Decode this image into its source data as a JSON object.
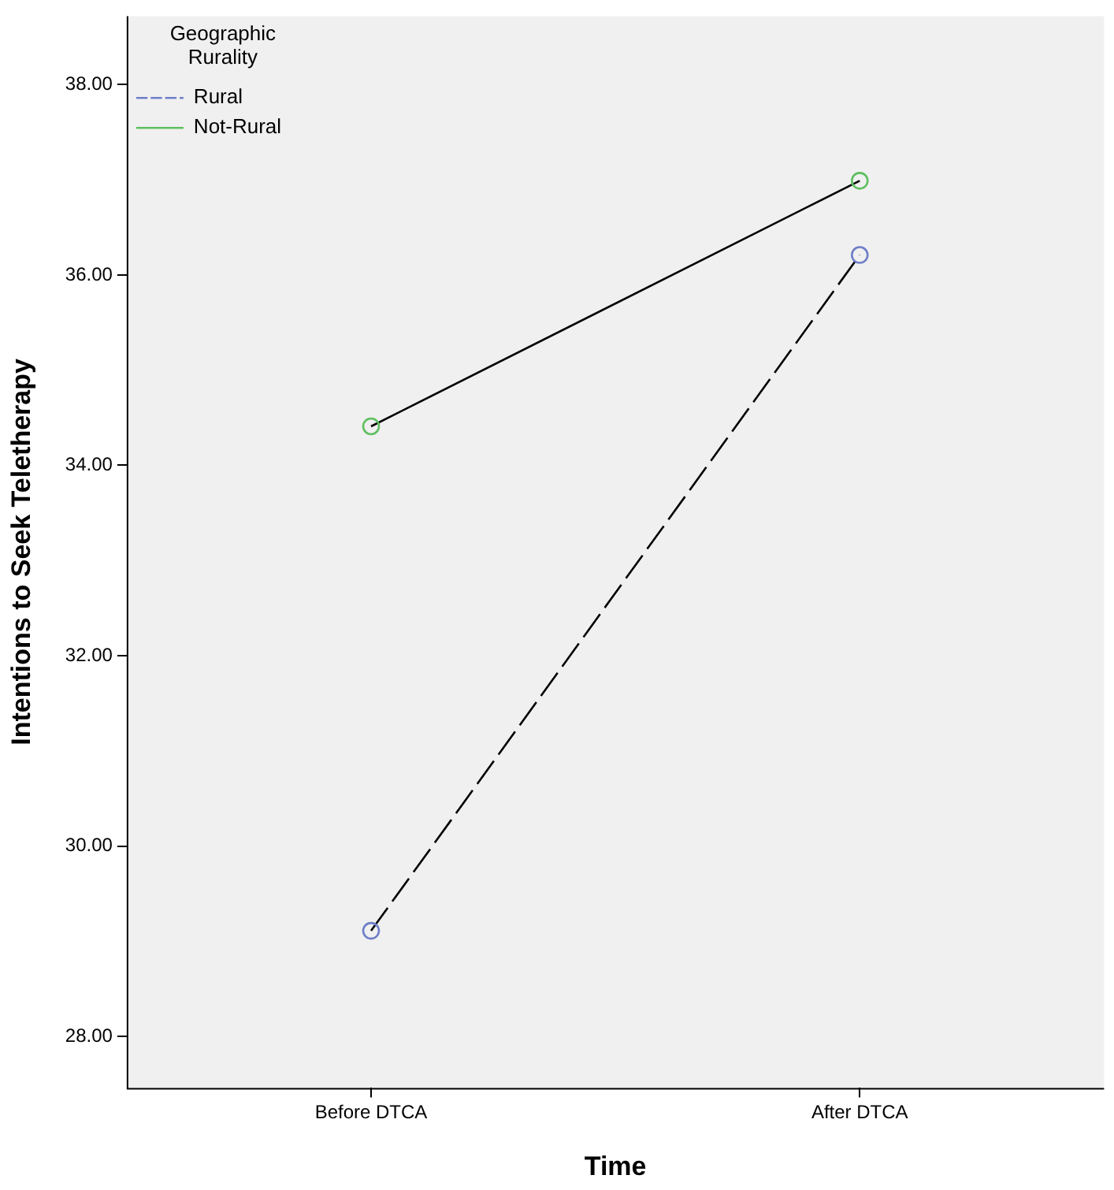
{
  "chart_data": {
    "type": "line",
    "xlabel": "Time",
    "ylabel": "Intentions to Seek Teletherapy",
    "legend_title": "Geographic Rurality",
    "categories": [
      "Before DTCA",
      "After DTCA"
    ],
    "series": [
      {
        "name": "Rural",
        "color": "#000000",
        "colors": [
          "#6f7fc8",
          "#6f7fc8"
        ],
        "line_style": "dashed",
        "values": [
          29.11,
          36.21
        ]
      },
      {
        "name": "Not-Rural",
        "color": "#000000",
        "colors": [
          "#5fbf5f",
          "#5fbf5f"
        ],
        "line_style": "solid",
        "values": [
          34.41,
          36.99
        ]
      }
    ],
    "ylim": [
      27.46,
      38.72
    ],
    "yticks": [
      {
        "value": 28,
        "label": "28.00"
      },
      {
        "value": 30,
        "label": "30.00"
      },
      {
        "value": 32,
        "label": "32.00"
      },
      {
        "value": 34,
        "label": "34.00"
      },
      {
        "value": 36,
        "label": "36.00"
      },
      {
        "value": 38,
        "label": "38.00"
      }
    ],
    "grid": false,
    "legend": "top left",
    "marker": "circle"
  }
}
